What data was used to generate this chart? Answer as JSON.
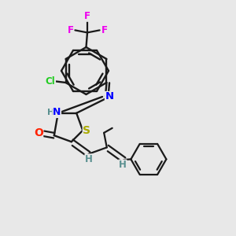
{
  "bg_color": "#e8e8e8",
  "bond_color": "#1a1a1a",
  "atom_colors": {
    "F": "#ee00ee",
    "Cl": "#22cc22",
    "N": "#0000ff",
    "S": "#aaaa00",
    "O": "#ff2200",
    "H": "#5a9090",
    "C": "#1a1a1a"
  },
  "figsize": [
    3.0,
    3.0
  ],
  "dpi": 100
}
